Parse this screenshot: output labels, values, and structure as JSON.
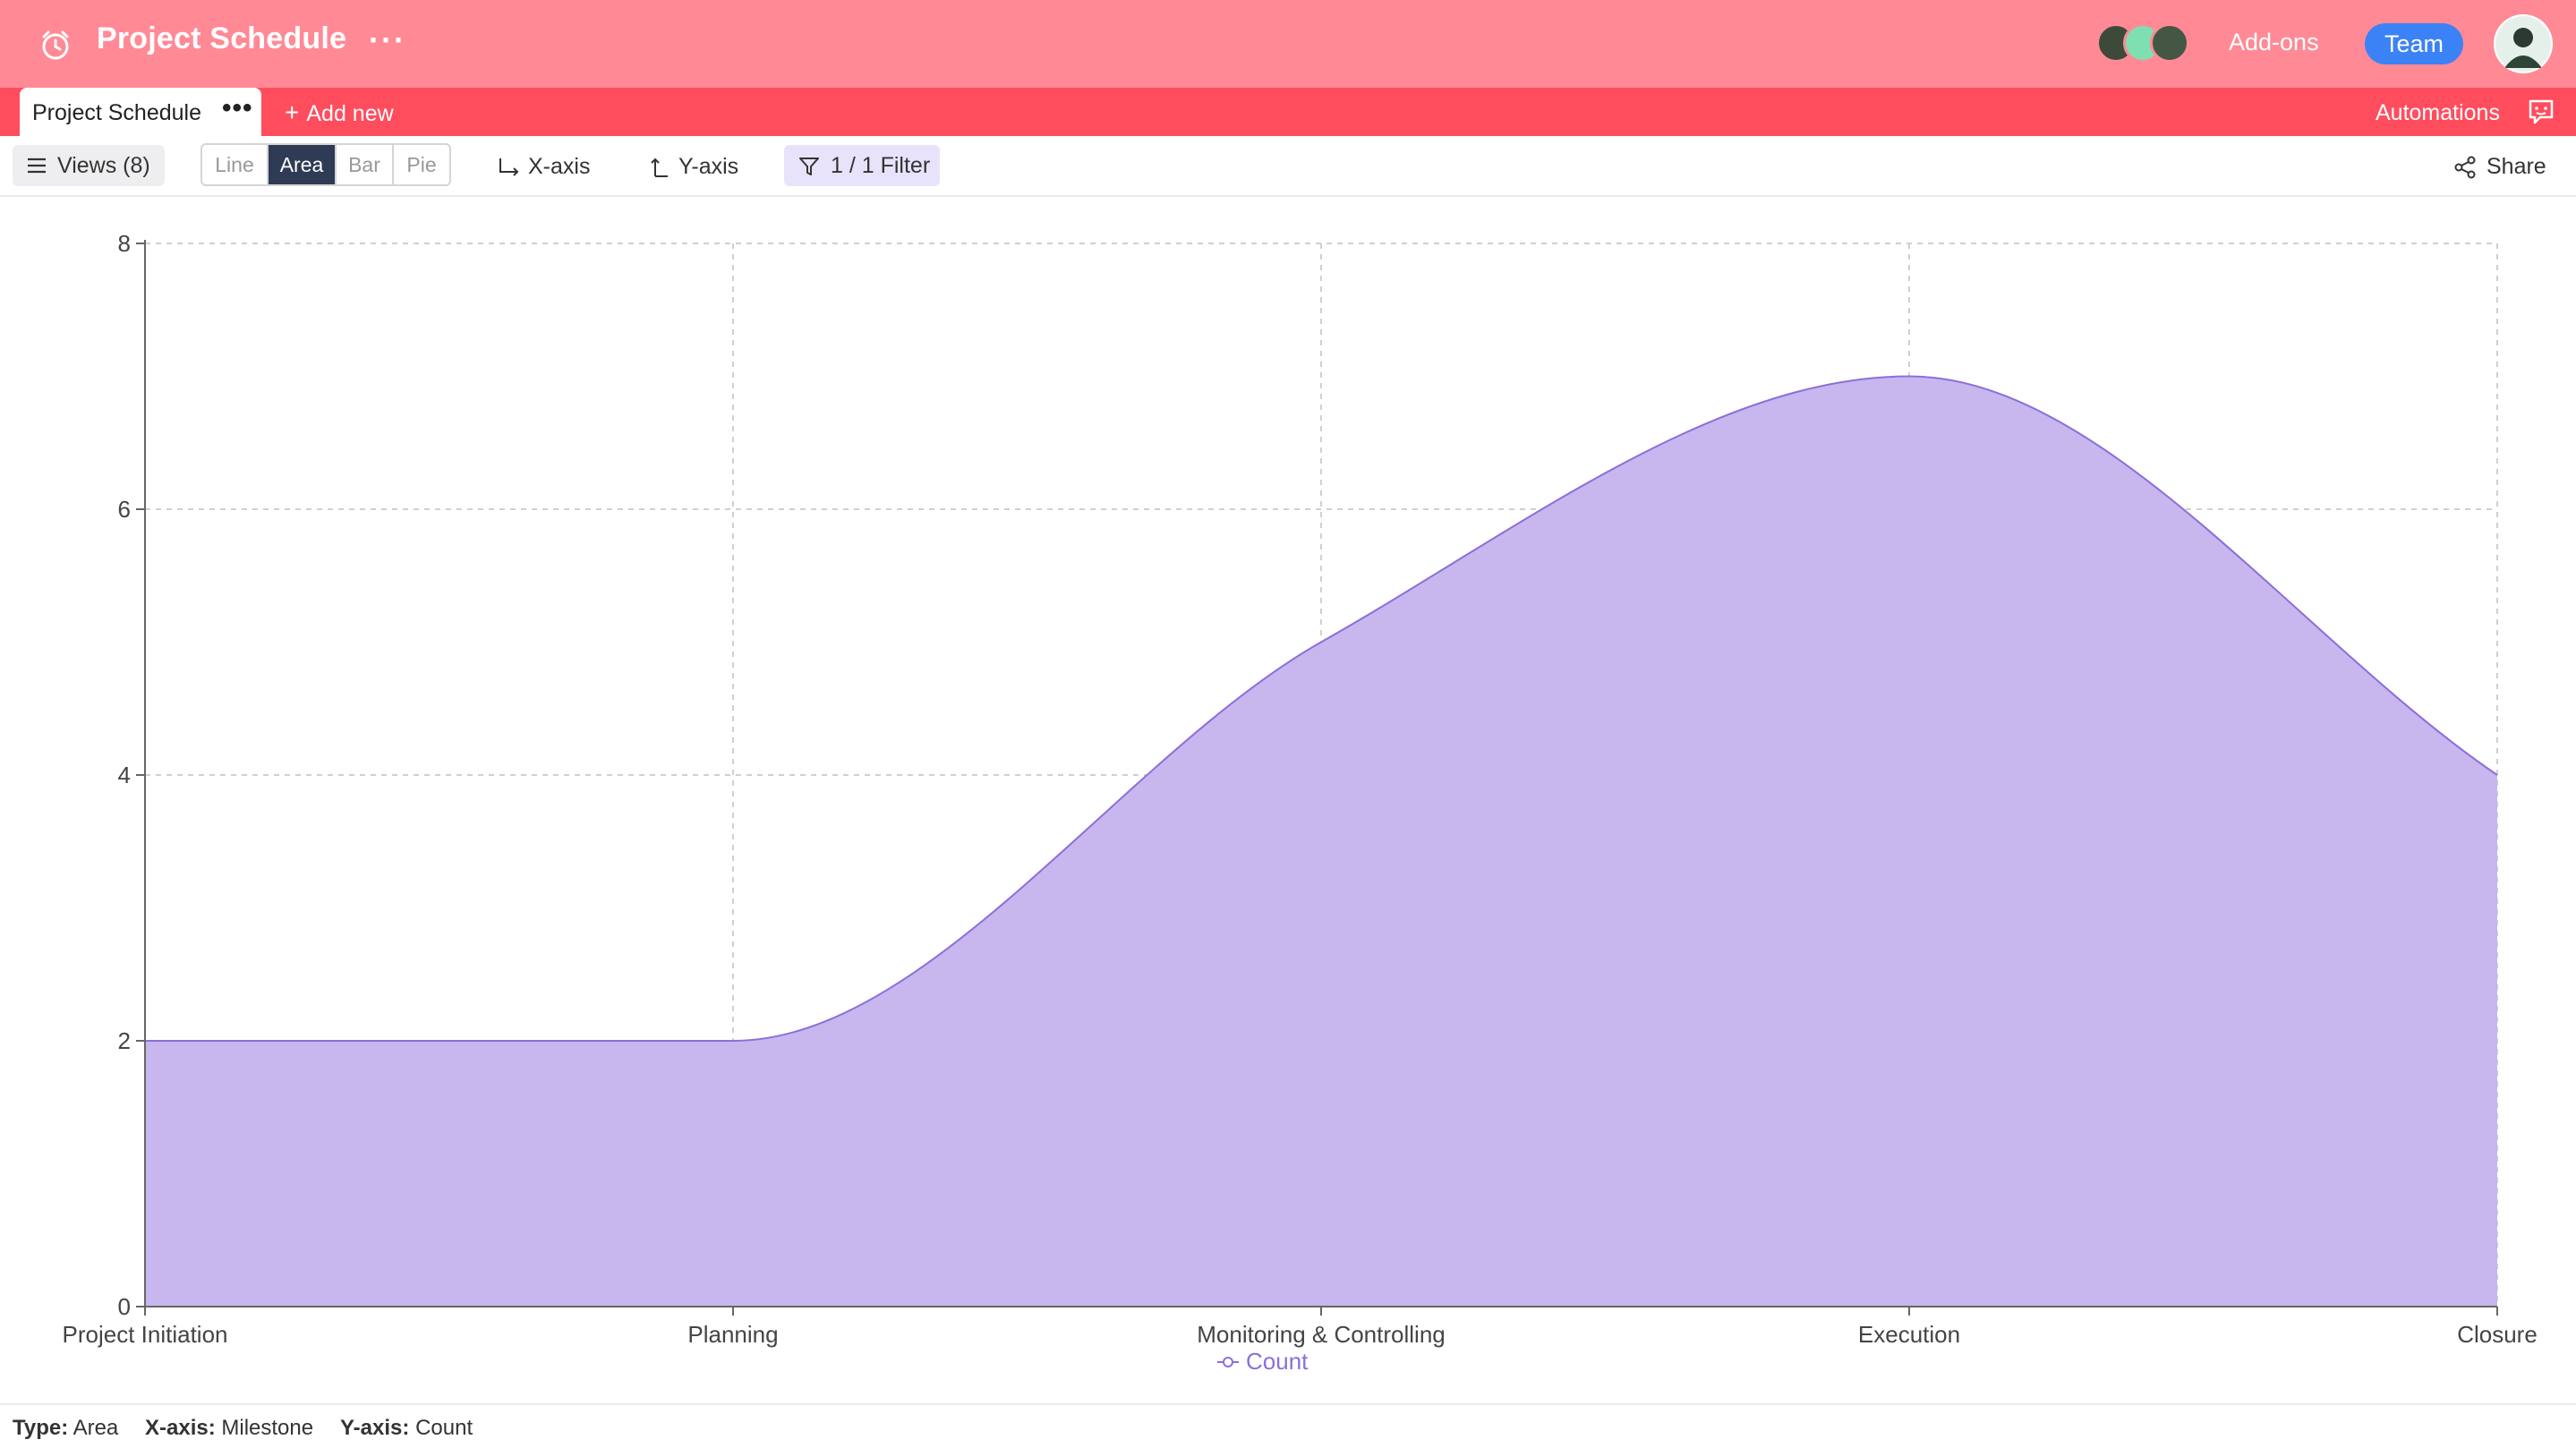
{
  "header": {
    "title": "Project Schedule",
    "more": "···",
    "addons_label": "Add-ons",
    "team_label": "Team",
    "icons": [
      "alarm-clock-icon",
      "more-icon",
      "avatar",
      "chat-icon"
    ]
  },
  "tabs": {
    "active_tab": "Project Schedule",
    "tab_more": "•••",
    "add_new_label": "Add new",
    "automations_label": "Automations"
  },
  "toolbar": {
    "views_label": "Views (8)",
    "chart_types": [
      "Line",
      "Area",
      "Bar",
      "Pie"
    ],
    "selected_chart_type": "Area",
    "xaxis_label": "X-axis",
    "yaxis_label": "Y-axis",
    "filter_label": "1 / 1 Filter",
    "share_label": "Share"
  },
  "colors": {
    "header_bg": "#ff8a96",
    "tabbar_bg": "#ff4d5e",
    "team_button": "#3b82f6",
    "area_fill": "#c8b6ee",
    "area_stroke": "#8b6fd9"
  },
  "chart_data": {
    "type": "area",
    "categories": [
      "Project Initiation",
      "Planning",
      "Monitoring & Controlling",
      "Execution",
      "Closure"
    ],
    "series": [
      {
        "name": "Count",
        "values": [
          2,
          2,
          5,
          7,
          4
        ]
      }
    ],
    "y_ticks": [
      "0",
      "2",
      "4",
      "6",
      "8"
    ],
    "ylim": [
      0,
      8
    ],
    "grid": true,
    "legend": "bottom-center",
    "smooth": true
  },
  "footer": {
    "type_key": "Type:",
    "type_value": "Area",
    "xaxis_key": "X-axis:",
    "xaxis_value": "Milestone",
    "yaxis_key": "Y-axis:",
    "yaxis_value": "Count"
  }
}
